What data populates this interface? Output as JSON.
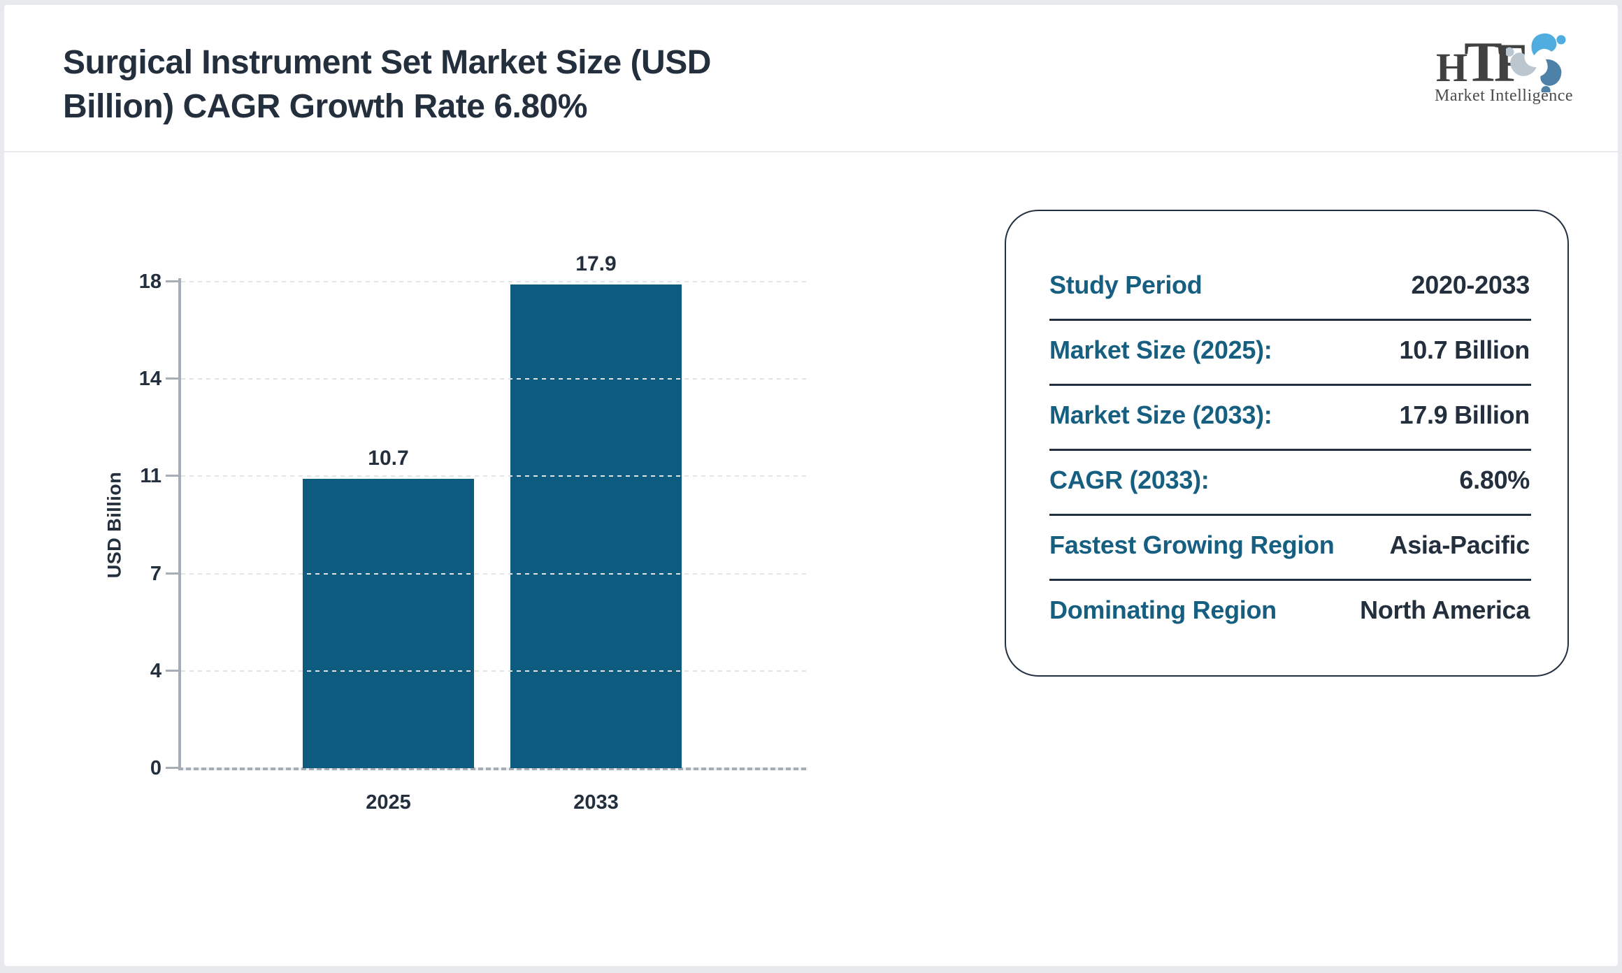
{
  "header": {
    "title_line1": "Surgical Instrument Set Market Size (USD",
    "title_line2": "Billion) CAGR Growth Rate 6.80%",
    "logo": {
      "monogram_h": "H",
      "monogram_t": "T",
      "monogram_f": "F",
      "subtext": "Market Intelligence",
      "figure_colors": [
        "#4FAEDF",
        "#4E81A8",
        "#BCC6CF"
      ]
    }
  },
  "chart_data": {
    "type": "bar",
    "title": "Surgical Instrument Set Market Size (USD Billion) CAGR Growth Rate 6.80%",
    "categories": [
      "2025",
      "2033"
    ],
    "values": [
      10.7,
      17.9
    ],
    "bar_labels": [
      "10.7",
      "17.9"
    ],
    "xlabel": "",
    "ylabel": "USD Billion",
    "ylim": [
      0,
      18
    ],
    "yticks": [
      0,
      4,
      7,
      11,
      14,
      18
    ],
    "grid": "horizontal-dotted",
    "legend_position": "none",
    "bar_color": "#0E5B80"
  },
  "info_panel": {
    "rows": [
      {
        "label": "Study Period",
        "value": "2020-2033"
      },
      {
        "label": "Market Size (2025):",
        "value": "10.7 Billion"
      },
      {
        "label": "Market Size (2033):",
        "value": "17.9 Billion"
      },
      {
        "label": "CAGR (2033):",
        "value": "6.80%"
      },
      {
        "label": "Fastest Growing Region",
        "value": "Asia-Pacific"
      },
      {
        "label": "Dominating Region",
        "value": "North America"
      }
    ]
  },
  "colors": {
    "navy_text": "#242F3D",
    "teal_label": "#175F80",
    "bar": "#0E5B80",
    "axis_gray": "#A6ADB5",
    "page_background": "#E7E9EC"
  }
}
